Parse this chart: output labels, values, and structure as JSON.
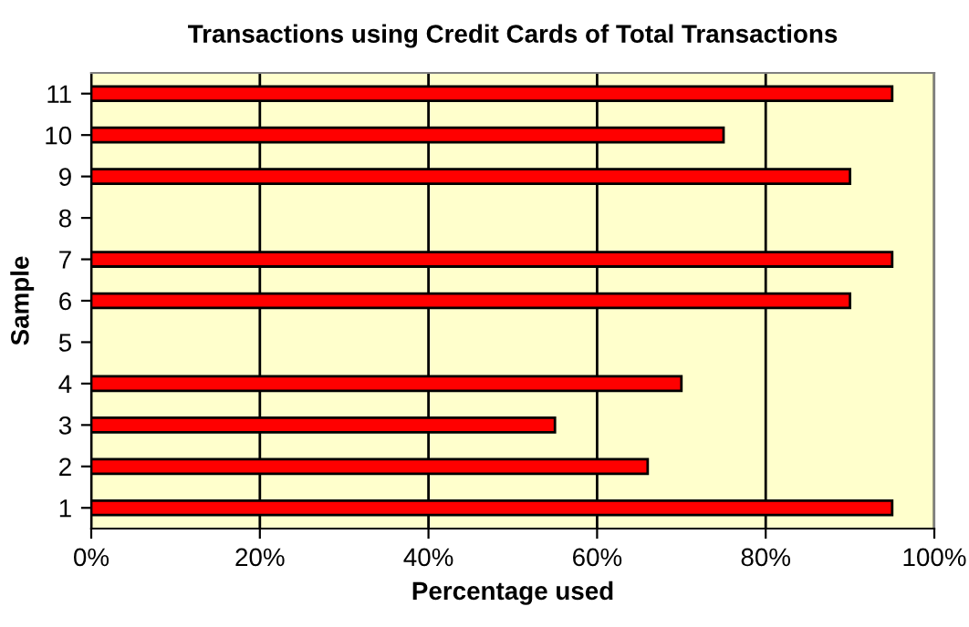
{
  "chart_data": {
    "type": "bar",
    "orientation": "horizontal",
    "title": "Transactions using Credit Cards of Total Transactions",
    "xlabel": "Percentage used",
    "ylabel": "Sample",
    "categories": [
      "11",
      "10",
      "9",
      "8",
      "7",
      "6",
      "5",
      "4",
      "3",
      "2",
      "1"
    ],
    "values": [
      95,
      75,
      90,
      null,
      95,
      90,
      null,
      70,
      55,
      66,
      95
    ],
    "color": "#ff0000",
    "xlim": [
      0,
      100
    ],
    "xticks": [
      {
        "value": 0,
        "label": "0%"
      },
      {
        "value": 20,
        "label": "20%"
      },
      {
        "value": 40,
        "label": "40%"
      },
      {
        "value": 60,
        "label": "60%"
      },
      {
        "value": 80,
        "label": "80%"
      },
      {
        "value": 100,
        "label": "100%"
      }
    ],
    "grid": "x",
    "legend": false
  }
}
